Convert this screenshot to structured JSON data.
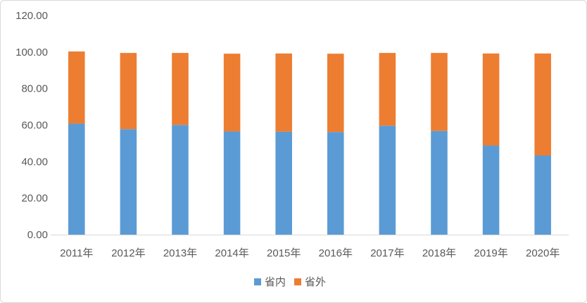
{
  "chart_data": {
    "type": "bar",
    "stacked": true,
    "title": "",
    "xlabel": "",
    "ylabel": "",
    "categories": [
      "2011年",
      "2012年",
      "2013年",
      "2014年",
      "2015年",
      "2016年",
      "2017年",
      "2018年",
      "2019年",
      "2020年"
    ],
    "series": [
      {
        "name": "省内",
        "color": "#5b9bd5",
        "values": [
          60.8,
          57.8,
          60.1,
          56.5,
          56.4,
          56.2,
          59.7,
          56.8,
          48.8,
          43.4
        ]
      },
      {
        "name": "省外",
        "color": "#ed7d31",
        "values": [
          39.5,
          41.7,
          39.4,
          42.6,
          42.8,
          42.9,
          39.8,
          42.7,
          50.4,
          55.8
        ]
      }
    ],
    "ylim": [
      0,
      120
    ],
    "yticks": [
      "0.00",
      "20.00",
      "40.00",
      "60.00",
      "80.00",
      "100.00",
      "120.00"
    ],
    "ytick_values": [
      0,
      20,
      40,
      60,
      80,
      100,
      120
    ],
    "grid": false,
    "legend_position": "bottom"
  }
}
